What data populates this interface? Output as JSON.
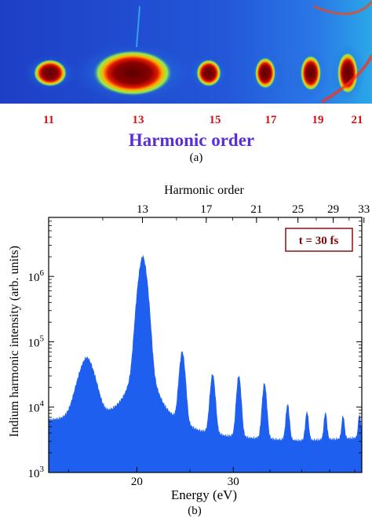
{
  "colors": {
    "spectrum_bg": "#1e4fd2",
    "order_label": "#d01414",
    "harmonic_title": "#5a2fd6",
    "fill": "#1f5ff0",
    "badge_border": "#8a1010",
    "badge_text": "#7a0a0a"
  },
  "panel_a": {
    "order_labels": [
      "11",
      "13",
      "15",
      "17",
      "19",
      "21"
    ],
    "axis_title": "Harmonic order",
    "caption": "(a)"
  },
  "panel_b": {
    "caption": "(b)",
    "badge": "t = 30 fs"
  },
  "chart_data": {
    "type": "area",
    "xlabel": "Energy (eV)",
    "ylabel": "Indium harmonic intensity (arb. units)",
    "top_xlabel": "Harmonic order",
    "xscale": "log",
    "yscale": "log",
    "xlim": [
      13.8,
      51.5
    ],
    "ylim": [
      1000,
      8000000
    ],
    "x_ticks": [
      {
        "value": 20,
        "label": "20"
      },
      {
        "value": 30,
        "label": "30"
      }
    ],
    "y_ticks": [
      {
        "value": 1000,
        "label": "10",
        "exp": "3"
      },
      {
        "value": 10000,
        "label": "10",
        "exp": "4"
      },
      {
        "value": 100000,
        "label": "10",
        "exp": "5"
      },
      {
        "value": 1000000,
        "label": "10",
        "exp": "6"
      }
    ],
    "top_ticks": [
      {
        "order": 13,
        "label": "13"
      },
      {
        "order": 17,
        "label": "17"
      },
      {
        "order": 21,
        "label": "21"
      },
      {
        "order": 25,
        "label": "25"
      },
      {
        "order": 29,
        "label": "29"
      },
      {
        "order": 33,
        "label": "33"
      }
    ],
    "baseline": [
      [
        13.8,
        5500
      ],
      [
        17,
        5000
      ],
      [
        20,
        4500
      ],
      [
        25,
        3300
      ],
      [
        30,
        3000
      ],
      [
        40,
        2900
      ],
      [
        51.5,
        3300
      ]
    ],
    "peaks": [
      {
        "x": 16.2,
        "y": 50000,
        "w": 0.7
      },
      {
        "x": 20.5,
        "y": 2000000,
        "w": 0.45
      },
      {
        "x": 24.2,
        "y": 65000,
        "w": 0.35
      },
      {
        "x": 27.5,
        "y": 28000,
        "w": 0.35
      },
      {
        "x": 30.7,
        "y": 27000,
        "w": 0.35
      },
      {
        "x": 34.2,
        "y": 20000,
        "w": 0.38
      },
      {
        "x": 37.7,
        "y": 8000,
        "w": 0.35
      },
      {
        "x": 40.9,
        "y": 5500,
        "w": 0.35
      },
      {
        "x": 44.2,
        "y": 5200,
        "w": 0.35
      },
      {
        "x": 47.6,
        "y": 4200,
        "w": 0.35
      },
      {
        "x": 51.0,
        "y": 4400,
        "w": 0.35
      }
    ]
  }
}
